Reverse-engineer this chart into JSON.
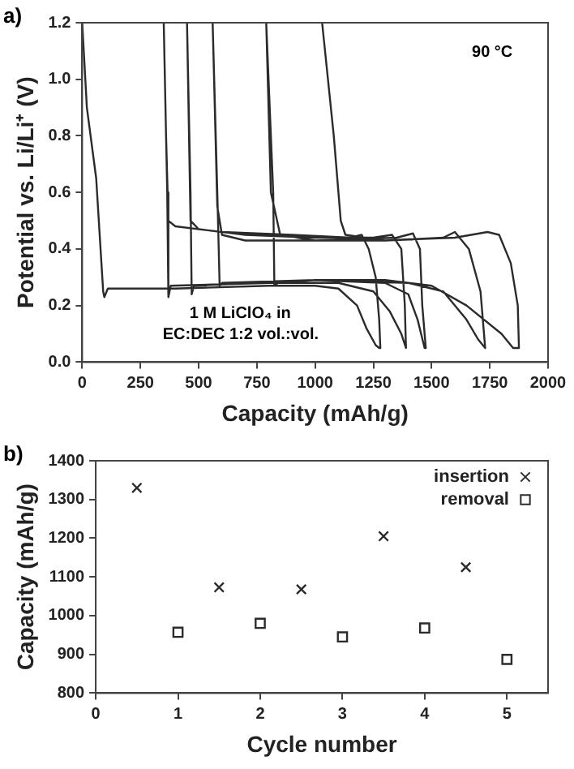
{
  "chart_data": [
    {
      "type": "line",
      "xlabel": "Capacity (mAh/g)",
      "ylabel": "Potential vs. Li/Li⁺ (V)",
      "annotations": [
        "a)",
        "90 °C",
        "1 M LiClO₄ in",
        "EC:DEC 1:2 vol.:vol."
      ],
      "xlim": [
        0,
        2000
      ],
      "xticks": [
        0,
        250,
        500,
        750,
        1000,
        1250,
        1500,
        1750,
        2000
      ],
      "ylim": [
        0,
        1.2
      ],
      "yticks": [
        {
          "value": 0,
          "label": "0.0"
        },
        0.2,
        0.4,
        0.6,
        0.8,
        {
          "value": 1,
          "label": "1.0"
        },
        1.2
      ],
      "grid": false,
      "legend": false,
      "marker": "none",
      "line_style": "solid",
      "series": [
        {
          "color": "#2b2b2b",
          "x": [
            0,
            20,
            60,
            90,
            95,
            110,
            400,
            800,
            1000,
            1100,
            1180,
            1220,
            1260,
            1275,
            1280,
            1275,
            1260,
            1230,
            1200,
            1150,
            900,
            600,
            400,
            370,
            360,
            350,
            365,
            370,
            380,
            800,
            1100,
            1250,
            1320,
            1370,
            1390,
            1385,
            1370,
            1330,
            1250,
            1000,
            700,
            500,
            465,
            450,
            465,
            470,
            480,
            1000,
            1300,
            1400,
            1440,
            1470,
            1475,
            1460,
            1450,
            1420,
            1350,
            1000,
            700,
            600,
            580,
            560,
            580,
            590,
            600,
            1000,
            1400,
            1550,
            1650,
            1700,
            1730,
            1710,
            1660,
            1600,
            1550,
            1300,
            1000,
            850,
            810,
            790,
            820,
            825,
            840,
            1000,
            1300,
            1500,
            1650,
            1800,
            1850,
            1875,
            1880,
            1870,
            1840,
            1790,
            1740,
            1600,
            1300,
            1130,
            1110,
            1080,
            1030
          ],
          "values": [
            1.2,
            0.9,
            0.65,
            0.25,
            0.23,
            0.26,
            0.26,
            0.27,
            0.27,
            0.26,
            0.2,
            0.12,
            0.06,
            0.05,
            0.05,
            0.15,
            0.3,
            0.4,
            0.45,
            0.44,
            0.45,
            0.46,
            0.48,
            0.5,
            0.8,
            1.2,
            0.6,
            0.23,
            0.27,
            0.28,
            0.28,
            0.25,
            0.18,
            0.1,
            0.05,
            0.2,
            0.4,
            0.45,
            0.44,
            0.44,
            0.45,
            0.47,
            0.5,
            1.2,
            0.6,
            0.24,
            0.27,
            0.29,
            0.28,
            0.24,
            0.15,
            0.05,
            0.05,
            0.2,
            0.4,
            0.455,
            0.44,
            0.43,
            0.43,
            0.45,
            0.55,
            1.2,
            0.6,
            0.27,
            0.28,
            0.29,
            0.28,
            0.25,
            0.15,
            0.08,
            0.05,
            0.25,
            0.4,
            0.46,
            0.44,
            0.43,
            0.43,
            0.45,
            0.6,
            1.2,
            0.6,
            0.27,
            0.28,
            0.29,
            0.29,
            0.27,
            0.2,
            0.1,
            0.05,
            0.05,
            0.05,
            0.2,
            0.35,
            0.45,
            0.46,
            0.44,
            0.43,
            0.45,
            0.5,
            0.8,
            1.2
          ]
        }
      ]
    },
    {
      "type": "scatter",
      "xlabel": "Cycle number",
      "ylabel": "Capacity (mAh/g)",
      "annotations": [
        "b)"
      ],
      "xlim": [
        0,
        5.5
      ],
      "xticks": [
        0,
        1,
        2,
        3,
        4,
        5
      ],
      "ylim": [
        800,
        1400
      ],
      "yticks": [
        800,
        900,
        1000,
        1100,
        1200,
        1300,
        1400
      ],
      "grid": false,
      "legend": "top right",
      "series": [
        {
          "name": "insertion",
          "color": "#2b2b2b",
          "marker": "cross",
          "x": [
            0.5,
            1.5,
            2.5,
            3.5,
            4.5
          ],
          "values": [
            1330,
            1073,
            1068,
            1205,
            1125
          ]
        },
        {
          "name": "removal",
          "color": "#2b2b2b",
          "marker": "square",
          "x": [
            1,
            2,
            3,
            4,
            5
          ],
          "values": [
            957,
            980,
            945,
            968,
            887
          ]
        }
      ]
    }
  ]
}
